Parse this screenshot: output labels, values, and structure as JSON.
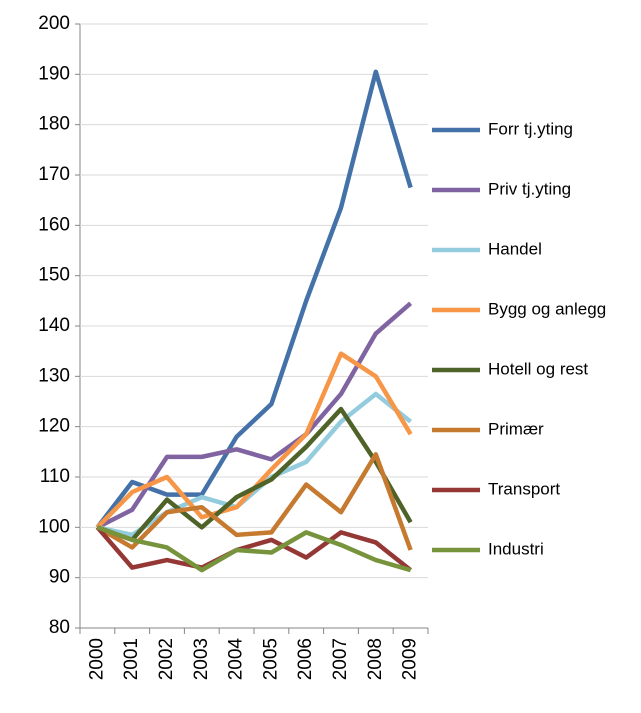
{
  "chart_data": {
    "type": "line",
    "categories": [
      "2000",
      "2001",
      "2002",
      "2003",
      "2004",
      "2005",
      "2006",
      "2007",
      "2008",
      "2009"
    ],
    "series": [
      {
        "name": "Forr tj.yting",
        "color": "#4472a8",
        "values": [
          100,
          109,
          106.5,
          106.5,
          118,
          124.5,
          145,
          163.5,
          190.5,
          167.5
        ]
      },
      {
        "name": "Priv tj.yting",
        "color": "#8064a2",
        "values": [
          100,
          103.5,
          114,
          114,
          115.5,
          113.5,
          118.5,
          126.5,
          138.5,
          144.5
        ]
      },
      {
        "name": "Handel",
        "color": "#93cddd",
        "values": [
          100,
          98.5,
          103,
          106,
          104,
          110,
          113,
          121,
          126.5,
          121
        ]
      },
      {
        "name": "Bygg og anlegg",
        "color": "#f79646",
        "values": [
          100,
          107,
          110,
          102,
          104,
          111.5,
          118.5,
          134.5,
          130,
          118.5
        ]
      },
      {
        "name": "Hotell og rest",
        "color": "#4f6228",
        "values": [
          100,
          97.5,
          105.5,
          100,
          106,
          109.5,
          116,
          123.5,
          113,
          101
        ]
      },
      {
        "name": "Primær",
        "color": "#c67a30",
        "values": [
          100,
          96,
          103,
          104,
          98.5,
          99,
          108.5,
          103,
          114.5,
          95.5
        ]
      },
      {
        "name": "Transport",
        "color": "#953735",
        "values": [
          100,
          92,
          93.5,
          92,
          95.5,
          97.5,
          94,
          99,
          97,
          91.5
        ]
      },
      {
        "name": "Industri",
        "color": "#77933c",
        "values": [
          100,
          97.5,
          96,
          91.5,
          95.5,
          95,
          99,
          96.5,
          93.5,
          91.5
        ]
      }
    ],
    "ylim": [
      80,
      200
    ],
    "yticks": [
      80,
      90,
      100,
      110,
      120,
      130,
      140,
      150,
      160,
      170,
      180,
      190,
      200
    ],
    "grid": true,
    "legend": "right"
  }
}
